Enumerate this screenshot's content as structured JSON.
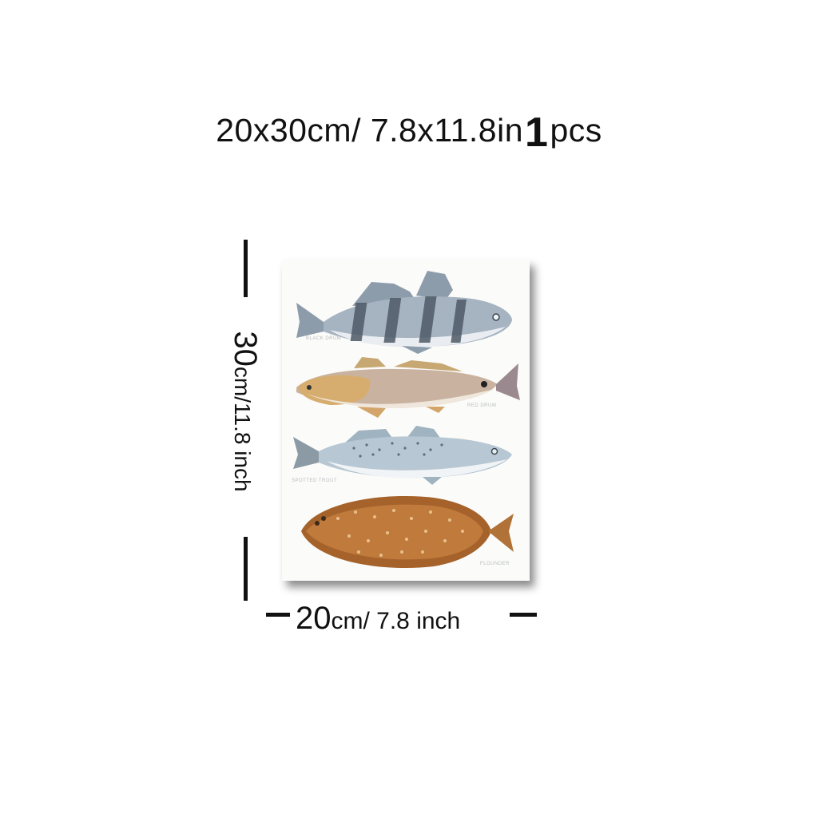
{
  "header": {
    "size_text": "20x30cm/ 7.8x11.8in",
    "quantity": "1",
    "unit": "pcs"
  },
  "height_label": {
    "value": "30",
    "unit": "cm/11.8 inch"
  },
  "width_label": {
    "value": "20",
    "unit": "cm/ 7.8 inch"
  },
  "artwork": {
    "fish": [
      {
        "name": "black-drum",
        "label": "BLACK DRUM"
      },
      {
        "name": "red-drum",
        "label": "RED DRUM"
      },
      {
        "name": "spotted-seatrout",
        "label": "SPOTTED TROUT"
      },
      {
        "name": "flounder",
        "label": "FLOUNDER"
      }
    ]
  },
  "colors": {
    "text": "#111111",
    "card": "#fbfbf9",
    "black_drum": "#8fa0b0",
    "red_drum": "#c9a784",
    "trout": "#a9bccb",
    "flounder": "#b06a2c"
  }
}
